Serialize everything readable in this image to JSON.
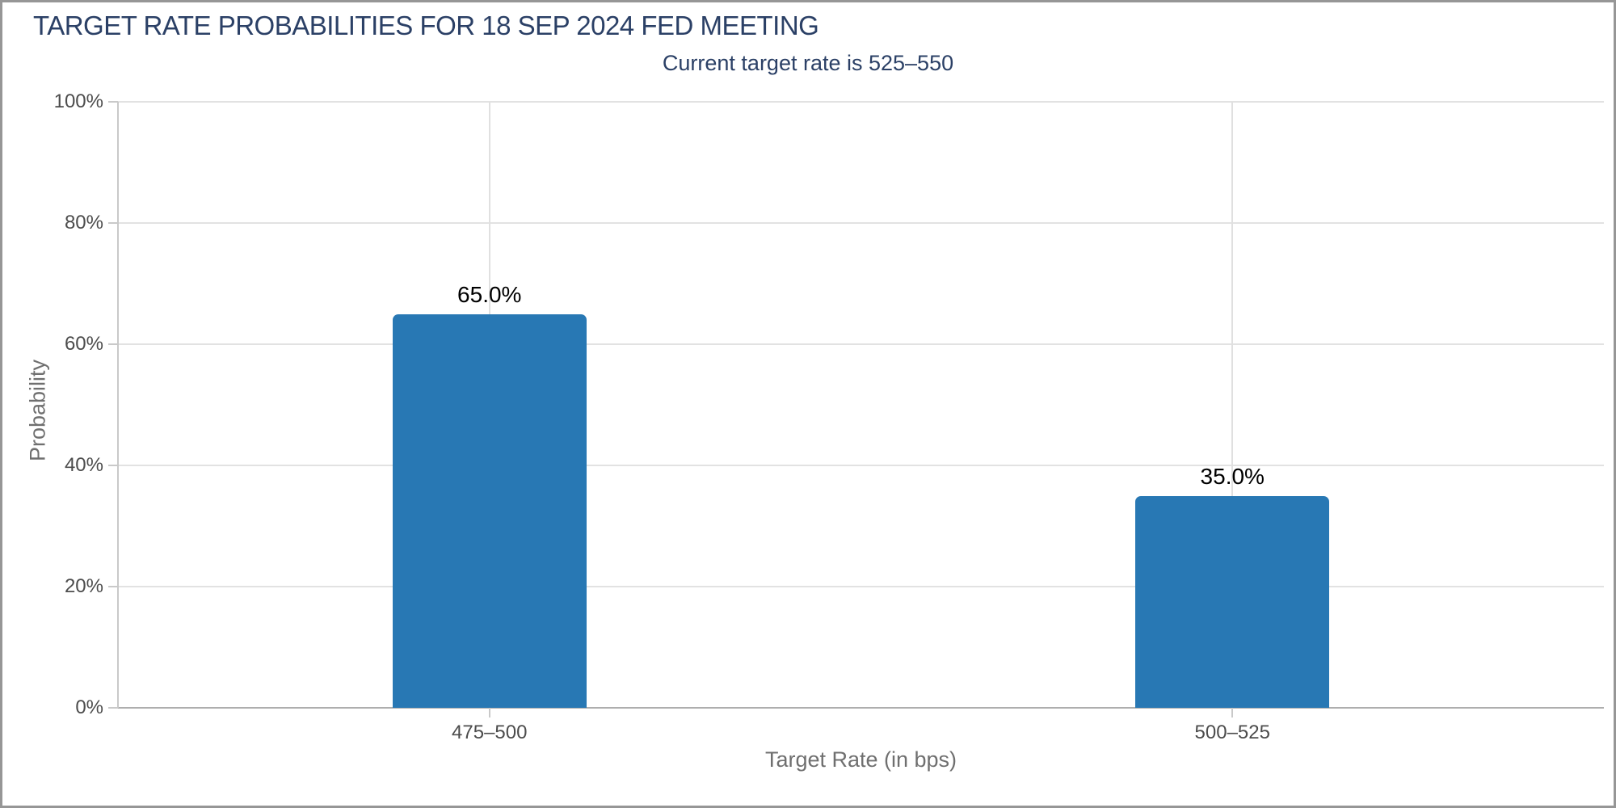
{
  "chart_data": {
    "type": "bar",
    "title": "TARGET RATE PROBABILITIES FOR 18 SEP 2024 FED MEETING",
    "subtitle": "Current target rate is 525–550",
    "categories": [
      "475–500",
      "500–525"
    ],
    "values": [
      65.0,
      35.0
    ],
    "value_labels": [
      "65.0%",
      "35.0%"
    ],
    "xlabel": "Target Rate (in bps)",
    "ylabel": "Probability",
    "ylim": [
      0,
      100
    ],
    "ytick_step": 20,
    "ytick_labels": [
      "0%",
      "20%",
      "40%",
      "60%",
      "80%",
      "100%"
    ],
    "grid": true,
    "legend": false,
    "colors": {
      "bar": "#2878b4",
      "title_text": "#2b4066",
      "value_label_text": "#000000",
      "tick_label_text": "#4c4c4c",
      "axis_title_text": "#6f6f6f",
      "gridline": "#e2e2e2",
      "axis_line": "#aeaeae",
      "border": "#969696"
    }
  }
}
